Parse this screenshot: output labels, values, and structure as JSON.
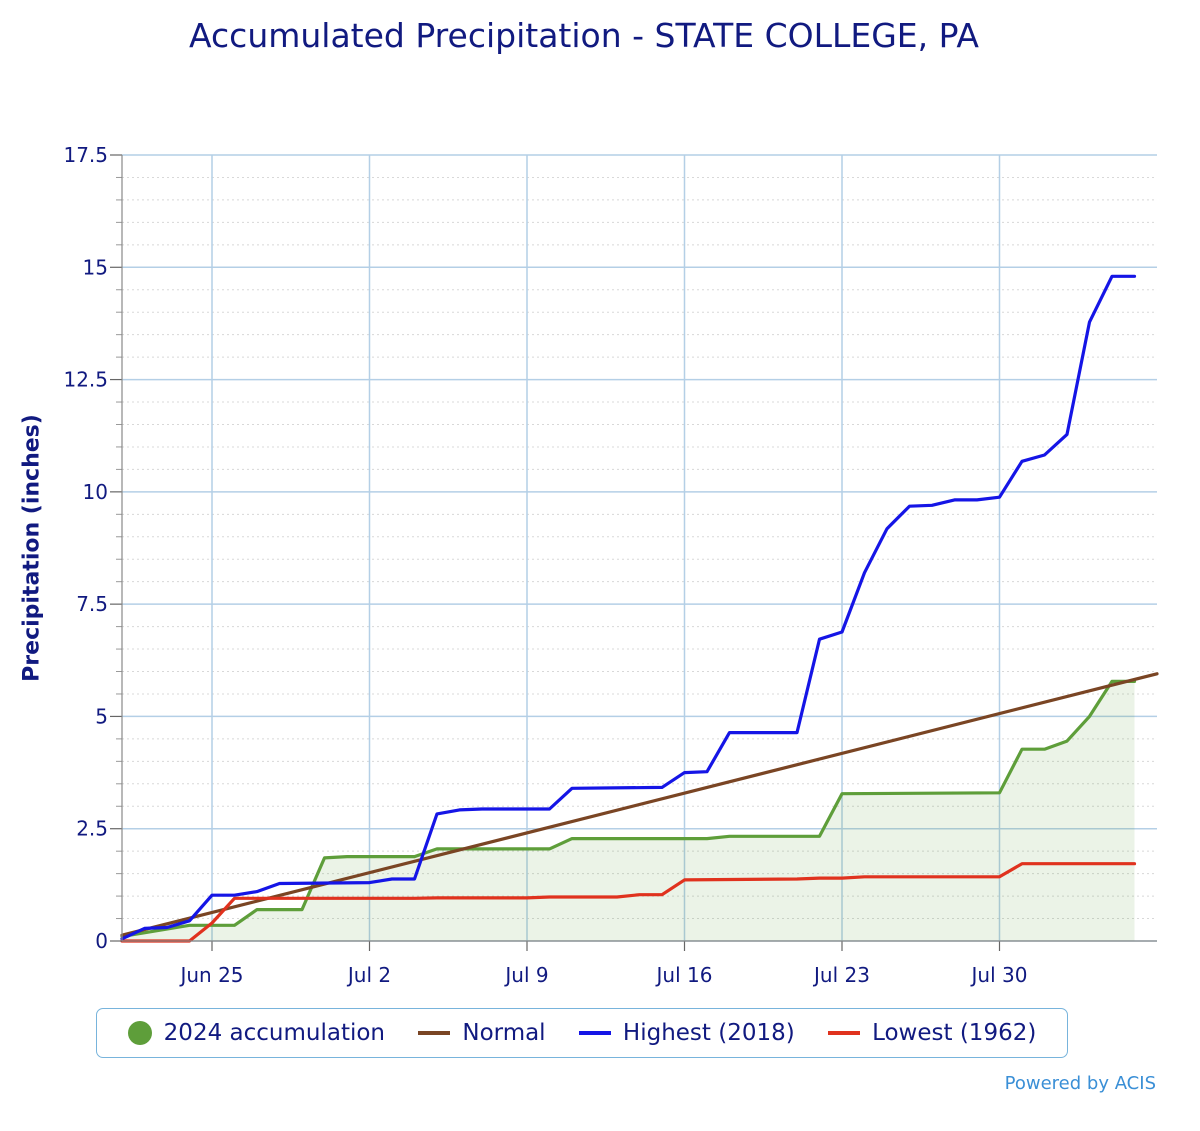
{
  "chart_data": {
    "type": "line",
    "title": "Accumulated Precipitation - STATE COLLEGE, PA",
    "ylabel": "Precipitation (inches)",
    "xlabel": "",
    "ylim": [
      0,
      17.5
    ],
    "yticks": [
      "0",
      "2.5",
      "5",
      "7.5",
      "10",
      "12.5",
      "15",
      "17.5"
    ],
    "yticks_values": [
      0,
      2.5,
      5,
      7.5,
      10,
      12.5,
      15,
      17.5
    ],
    "xlim": [
      "Jun 21",
      "Aug 6"
    ],
    "xticks": [
      "Jun 25",
      "Jul 2",
      "Jul 9",
      "Jul 16",
      "Jul 23",
      "Jul 30"
    ],
    "xticks_dates": [
      "Jun 25",
      "Jul 2",
      "Jul 9",
      "Jul 16",
      "Jul 23",
      "Jul 30"
    ],
    "grid": true,
    "legend_position": "bottom",
    "series": [
      {
        "name": "2024 accumulation",
        "color": "#5e9e3a",
        "style": "area",
        "points": [
          [
            "Jun 21",
            0.1
          ],
          [
            "Jun 24",
            0.35
          ],
          [
            "Jun 25",
            0.35
          ],
          [
            "Jun 26",
            0.35
          ],
          [
            "Jun 27",
            0.7
          ],
          [
            "Jun 28",
            0.7
          ],
          [
            "Jun 29",
            0.7
          ],
          [
            "Jun 30",
            1.85
          ],
          [
            "Jul 1",
            1.88
          ],
          [
            "Jul 4",
            1.88
          ],
          [
            "Jul 5",
            2.05
          ],
          [
            "Jul 10",
            2.05
          ],
          [
            "Jul 11",
            2.28
          ],
          [
            "Jul 17",
            2.28
          ],
          [
            "Jul 18",
            2.33
          ],
          [
            "Jul 22",
            2.33
          ],
          [
            "Jul 23",
            3.28
          ],
          [
            "Jul 30",
            3.3
          ],
          [
            "Jul 31",
            4.27
          ],
          [
            "Aug 1",
            4.27
          ],
          [
            "Aug 2",
            4.45
          ],
          [
            "Aug 3",
            5.0
          ],
          [
            "Aug 4",
            5.78
          ],
          [
            "Aug 5",
            5.78
          ]
        ]
      },
      {
        "name": "Normal",
        "color": "#7a4524",
        "style": "line",
        "points": [
          [
            "Jun 21",
            0.13
          ],
          [
            "Aug 6",
            5.95
          ]
        ]
      },
      {
        "name": "Highest (2018)",
        "color": "#1515e6",
        "style": "line",
        "points": [
          [
            "Jun 21",
            0.05
          ],
          [
            "Jun 22",
            0.28
          ],
          [
            "Jun 23",
            0.3
          ],
          [
            "Jun 24",
            0.45
          ],
          [
            "Jun 25",
            1.02
          ],
          [
            "Jun 26",
            1.02
          ],
          [
            "Jun 27",
            1.1
          ],
          [
            "Jun 28",
            1.28
          ],
          [
            "Jul 2",
            1.3
          ],
          [
            "Jul 3",
            1.38
          ],
          [
            "Jul 4",
            1.38
          ],
          [
            "Jul 5",
            2.83
          ],
          [
            "Jul 6",
            2.92
          ],
          [
            "Jul 7",
            2.94
          ],
          [
            "Jul 10",
            2.94
          ],
          [
            "Jul 11",
            3.4
          ],
          [
            "Jul 15",
            3.42
          ],
          [
            "Jul 16",
            3.75
          ],
          [
            "Jul 17",
            3.77
          ],
          [
            "Jul 18",
            4.64
          ],
          [
            "Jul 21",
            4.64
          ],
          [
            "Jul 22",
            6.72
          ],
          [
            "Jul 23",
            6.88
          ],
          [
            "Jul 24",
            8.2
          ],
          [
            "Jul 25",
            9.18
          ],
          [
            "Jul 26",
            9.68
          ],
          [
            "Jul 27",
            9.7
          ],
          [
            "Jul 28",
            9.82
          ],
          [
            "Jul 29",
            9.82
          ],
          [
            "Jul 30",
            9.88
          ],
          [
            "Jul 31",
            10.68
          ],
          [
            "Aug 1",
            10.82
          ],
          [
            "Aug 2",
            11.28
          ],
          [
            "Aug 3",
            13.78
          ],
          [
            "Aug 4",
            14.8
          ],
          [
            "Aug 5",
            14.8
          ]
        ]
      },
      {
        "name": "Lowest (1962)",
        "color": "#e0321e",
        "style": "line",
        "points": [
          [
            "Jun 21",
            0.0
          ],
          [
            "Jun 24",
            0.0
          ],
          [
            "Jun 25",
            0.4
          ],
          [
            "Jun 26",
            0.95
          ],
          [
            "Jul 4",
            0.95
          ],
          [
            "Jul 5",
            0.96
          ],
          [
            "Jul 9",
            0.96
          ],
          [
            "Jul 10",
            0.98
          ],
          [
            "Jul 13",
            0.98
          ],
          [
            "Jul 14",
            1.03
          ],
          [
            "Jul 15",
            1.03
          ],
          [
            "Jul 16",
            1.36
          ],
          [
            "Jul 21",
            1.38
          ],
          [
            "Jul 22",
            1.4
          ],
          [
            "Jul 23",
            1.4
          ],
          [
            "Jul 24",
            1.43
          ],
          [
            "Jul 30",
            1.43
          ],
          [
            "Jul 31",
            1.72
          ],
          [
            "Aug 5",
            1.72
          ]
        ]
      }
    ]
  },
  "credit": "Powered by ACIS"
}
